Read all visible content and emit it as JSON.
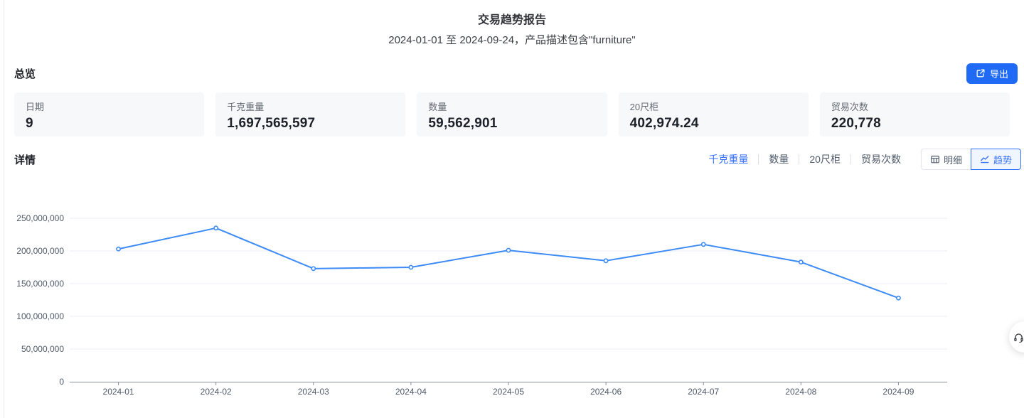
{
  "page": {
    "title": "交易趋势报告",
    "subtitle": "2024-01-01 至 2024-09-24，产品描述包含\"furniture\""
  },
  "overview": {
    "section_title": "总览",
    "export_label": "导出",
    "cards": [
      {
        "label": "日期",
        "value": "9"
      },
      {
        "label": "千克重量",
        "value": "1,697,565,597"
      },
      {
        "label": "数量",
        "value": "59,562,901"
      },
      {
        "label": "20尺柜",
        "value": "402,974.24"
      },
      {
        "label": "贸易次数",
        "value": "220,778"
      }
    ]
  },
  "detail": {
    "section_title": "详情",
    "metric_tabs": [
      {
        "label": "千克重量",
        "active": true
      },
      {
        "label": "数量",
        "active": false
      },
      {
        "label": "20尺柜",
        "active": false
      },
      {
        "label": "贸易次数",
        "active": false
      }
    ],
    "view_toggles": [
      {
        "label": "明细",
        "icon": "table-icon",
        "active": false
      },
      {
        "label": "趋势",
        "icon": "trend-icon",
        "active": true
      }
    ]
  },
  "chart_data": {
    "type": "line",
    "title": "",
    "xlabel": "",
    "ylabel": "",
    "categories": [
      "2024-01",
      "2024-02",
      "2024-03",
      "2024-04",
      "2024-05",
      "2024-06",
      "2024-07",
      "2024-08",
      "2024-09"
    ],
    "series": [
      {
        "name": "千克重量",
        "values": [
          203000000,
          235000000,
          173000000,
          175000000,
          201000000,
          185000000,
          210000000,
          183000000,
          128000000
        ]
      }
    ],
    "ylim": [
      0,
      250000000
    ],
    "y_ticks": [
      0,
      50000000,
      100000000,
      150000000,
      200000000,
      250000000
    ],
    "grid": true,
    "legend_position": "none",
    "line_color": "#3d8bf6",
    "marker_fill": "#ffffff",
    "grid_color": "#ebeef3",
    "axis_line_color": "#8a919f",
    "axis_label_color": "#4e5969"
  },
  "colors": {
    "accent_blue": "#3370ff",
    "button_blue": "#1f6bf5",
    "card_bg": "#f7f8fa",
    "text_primary": "#1f2329",
    "text_secondary": "#646a73"
  },
  "icons": [
    "export-icon",
    "table-icon",
    "trend-icon",
    "headset-icon"
  ],
  "floating": {
    "button": "support-button"
  }
}
